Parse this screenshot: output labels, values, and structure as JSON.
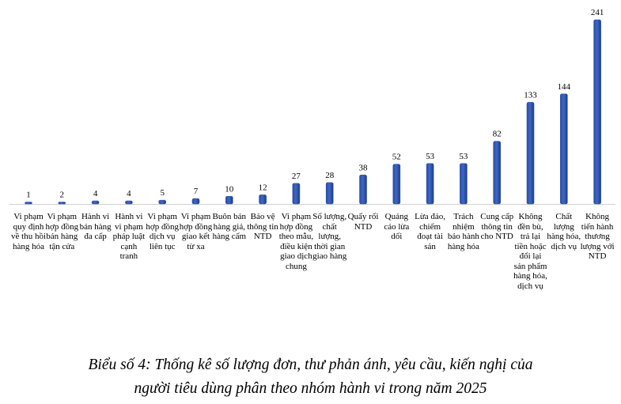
{
  "chart_data": {
    "type": "bar",
    "categories": [
      "Vi phạm quy định về thu hồi hàng hóa",
      "Vi phạm hợp đồng bán hàng tận cửa",
      "Hành vi bán hàng đa cấp",
      "Hành vi vi phạm pháp luật cạnh tranh",
      "Vi phạm hợp đồng dịch vụ liên tục",
      "Vi phạm hợp đồng giao kết từ xa",
      "Buôn bán hàng giả, hàng cấm",
      "Bảo vệ thông tin NTD",
      "Vi phạm hợp đồng theo mẫu, điều kiện giao dịch chung",
      "Số lượng, chất lượng, thời gian giao hàng",
      "Quấy rối NTD",
      "Quảng cáo lừa dối",
      "Lừa đảo, chiếm đoạt tài sản",
      "Trách nhiệm bảo hành hàng hóa",
      "Cung cấp thông tin cho NTD",
      "Không đền bù, trả lại tiền hoặc đổi lại sản phẩm hàng hóa, dịch vụ",
      "Chất lượng hàng hóa, dịch vụ",
      "Không tiến hành thương lượng với NTD"
    ],
    "values": [
      1,
      2,
      4,
      4,
      5,
      7,
      10,
      12,
      27,
      28,
      38,
      52,
      53,
      53,
      82,
      133,
      144,
      241
    ],
    "data_labels": [
      "1",
      "2",
      "4",
      "4",
      "5",
      "7",
      "10",
      "12",
      "27",
      "28",
      "38",
      "52",
      "53",
      "53",
      "82",
      "133",
      "144",
      "241"
    ],
    "bar_color": "#2f55b0",
    "ylim": [
      0,
      241
    ],
    "grid": false,
    "legend": "none",
    "title": "Biểu số 4: Thống kê số lượng đơn, thư phản ánh, yêu cầu, kiến nghị của người tiêu dùng phân theo nhóm hành vi trong năm 2025"
  },
  "caption": {
    "line1": "Biểu số 4: Thống kê số lượng đơn, thư phản ánh, yêu cầu, kiến nghị của",
    "line2": "người tiêu dùng phân theo nhóm hành vi trong năm 2025"
  }
}
